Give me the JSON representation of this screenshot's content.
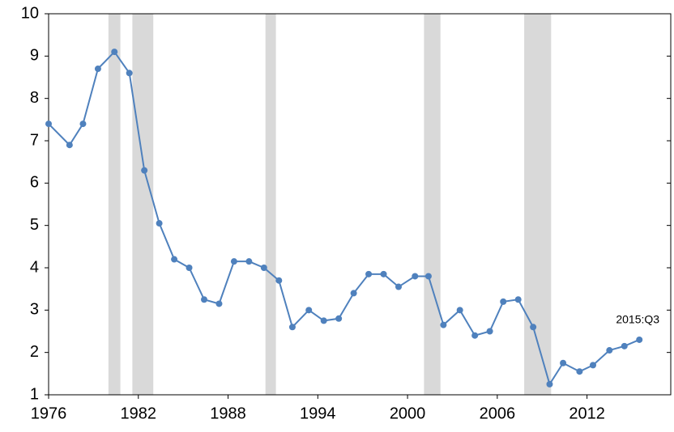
{
  "chart_data": {
    "type": "line",
    "annotation": "2015:Q3",
    "x": [
      1976.0,
      1977.4,
      1978.3,
      1979.3,
      1980.4,
      1981.4,
      1982.4,
      1983.4,
      1984.4,
      1985.4,
      1986.4,
      1987.4,
      1988.4,
      1989.4,
      1990.4,
      1991.4,
      1992.3,
      1993.4,
      1994.4,
      1995.4,
      1996.4,
      1997.4,
      1998.4,
      1999.4,
      2000.5,
      2001.4,
      2002.4,
      2003.5,
      2004.5,
      2005.5,
      2006.4,
      2007.4,
      2008.4,
      2009.5,
      2010.4,
      2011.5,
      2012.4,
      2013.5,
      2014.5,
      2015.5
    ],
    "series": [
      {
        "color": "#4f81bd",
        "values": [
          7.4,
          6.9,
          7.4,
          8.7,
          9.1,
          8.6,
          6.3,
          5.05,
          4.2,
          4.0,
          3.25,
          3.15,
          4.15,
          4.15,
          4.0,
          3.7,
          2.6,
          3.0,
          2.75,
          2.8,
          3.4,
          3.85,
          3.85,
          3.55,
          3.8,
          3.8,
          2.65,
          3.0,
          2.4,
          2.5,
          3.2,
          3.25,
          2.6,
          1.25,
          1.75,
          1.55,
          1.7,
          2.05,
          2.15,
          2.3
        ]
      }
    ],
    "shaded_regions": [
      [
        1980.0,
        1980.8
      ],
      [
        1981.6,
        1983.0
      ],
      [
        1990.5,
        1991.2
      ],
      [
        2001.1,
        2002.2
      ],
      [
        2007.8,
        2009.6
      ]
    ],
    "shade_color": "#d9d9d9",
    "xlim": [
      1976,
      2017.6
    ],
    "xticks": [
      1976,
      1982,
      1988,
      1994,
      2000,
      2006,
      2012
    ],
    "ylim": [
      1,
      10
    ],
    "yticks": [
      1,
      2,
      3,
      4,
      5,
      6,
      7,
      8,
      9,
      10
    ]
  }
}
